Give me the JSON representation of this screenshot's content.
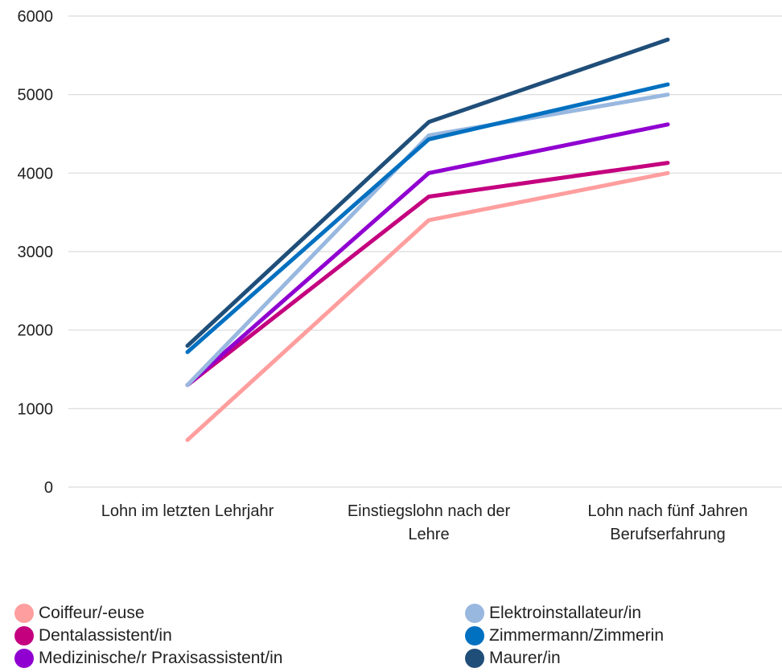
{
  "chart_data": {
    "type": "line",
    "title": "",
    "xlabel": "",
    "ylabel": "",
    "categories": [
      [
        "Lohn im letzten Lehrjahr"
      ],
      [
        "Einstiegslohn nach der",
        "Lehre"
      ],
      [
        "Lohn nach fünf Jahren",
        "Berufserfahrung"
      ]
    ],
    "ylim": [
      0,
      6000
    ],
    "yticks": [
      "0",
      "1000",
      "2000",
      "3000",
      "4000",
      "5000",
      "6000"
    ],
    "grid": true,
    "legend_position": "bottom",
    "series": [
      {
        "name": "Coiffeur/-euse",
        "color": "#FF9E9E",
        "values": [
          600,
          3400,
          4000
        ]
      },
      {
        "name": "Dentalassistent/in",
        "color": "#C4007F",
        "values": [
          1300,
          3700,
          4130
        ]
      },
      {
        "name": "Medizinische/r Praxisassistent/in",
        "color": "#9000D0",
        "values": [
          1300,
          4000,
          4620
        ]
      },
      {
        "name": "Elektroinstallateur/in",
        "color": "#99B8E0",
        "values": [
          1300,
          4480,
          5000
        ]
      },
      {
        "name": "Zimmermann/Zimmerin",
        "color": "#0070C0",
        "values": [
          1720,
          4430,
          5130
        ]
      },
      {
        "name": "Maurer/in",
        "color": "#1F4E79",
        "values": [
          1800,
          4650,
          5700
        ]
      }
    ]
  }
}
